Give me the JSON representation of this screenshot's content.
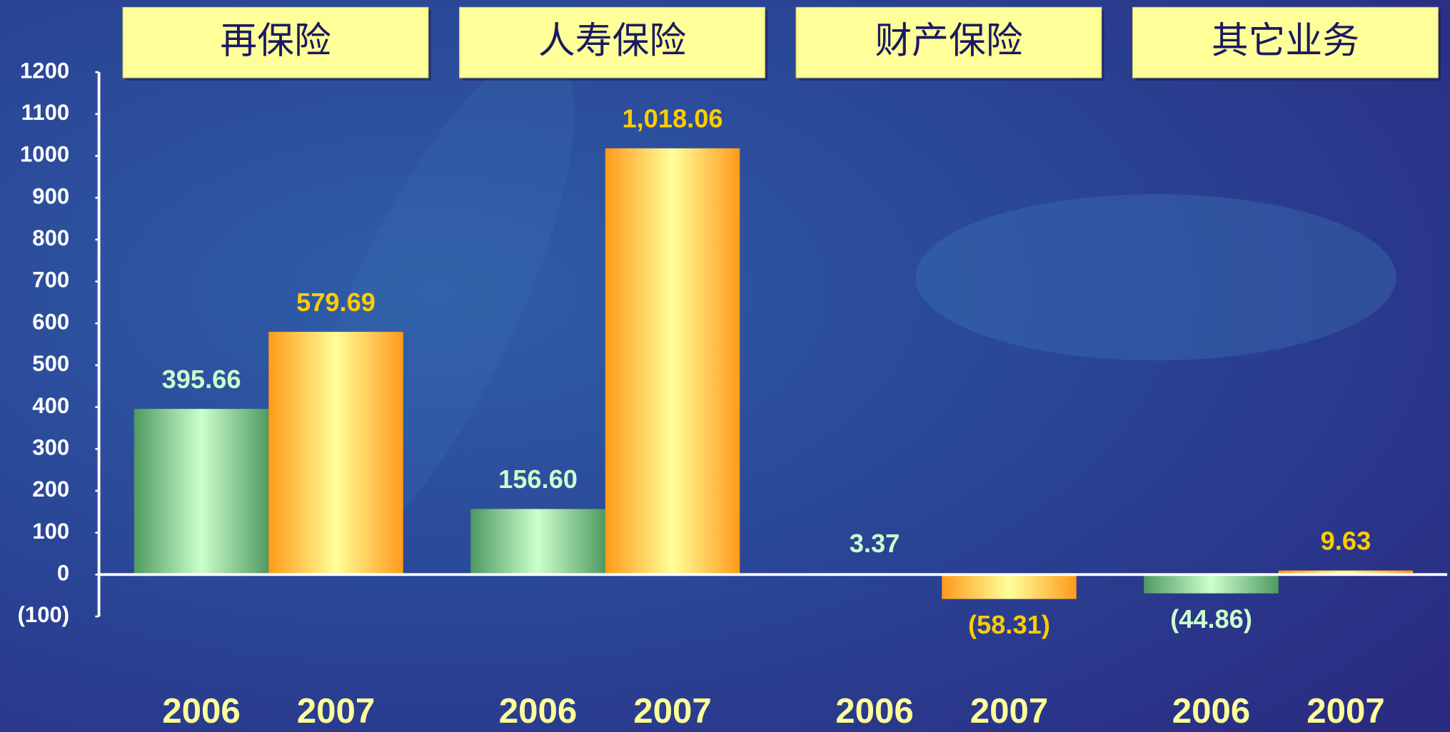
{
  "chart_data": {
    "type": "bar",
    "categories": [
      "再保险",
      "人寿保险",
      "财产保险",
      "其它业务"
    ],
    "series": [
      {
        "name": "2006",
        "color": "#4f9a62",
        "label_color": "#ccffcc",
        "values": [
          395.66,
          156.6,
          3.37,
          -44.86
        ],
        "value_labels": [
          "395.66",
          "156.60",
          "3.37",
          "(44.86)"
        ]
      },
      {
        "name": "2007",
        "color": "#ff9a1a",
        "label_color": "#ffcc00",
        "values": [
          579.69,
          1018.06,
          -58.31,
          9.63
        ],
        "value_labels": [
          "579.69",
          "1,018.06",
          "(58.31)",
          "9.63"
        ]
      }
    ],
    "ylim": [
      -100,
      1200
    ],
    "yticks": [
      {
        "value": -100,
        "label": "(100)"
      },
      0,
      100,
      200,
      300,
      400,
      500,
      600,
      700,
      800,
      900,
      1000,
      1100,
      1200
    ]
  }
}
